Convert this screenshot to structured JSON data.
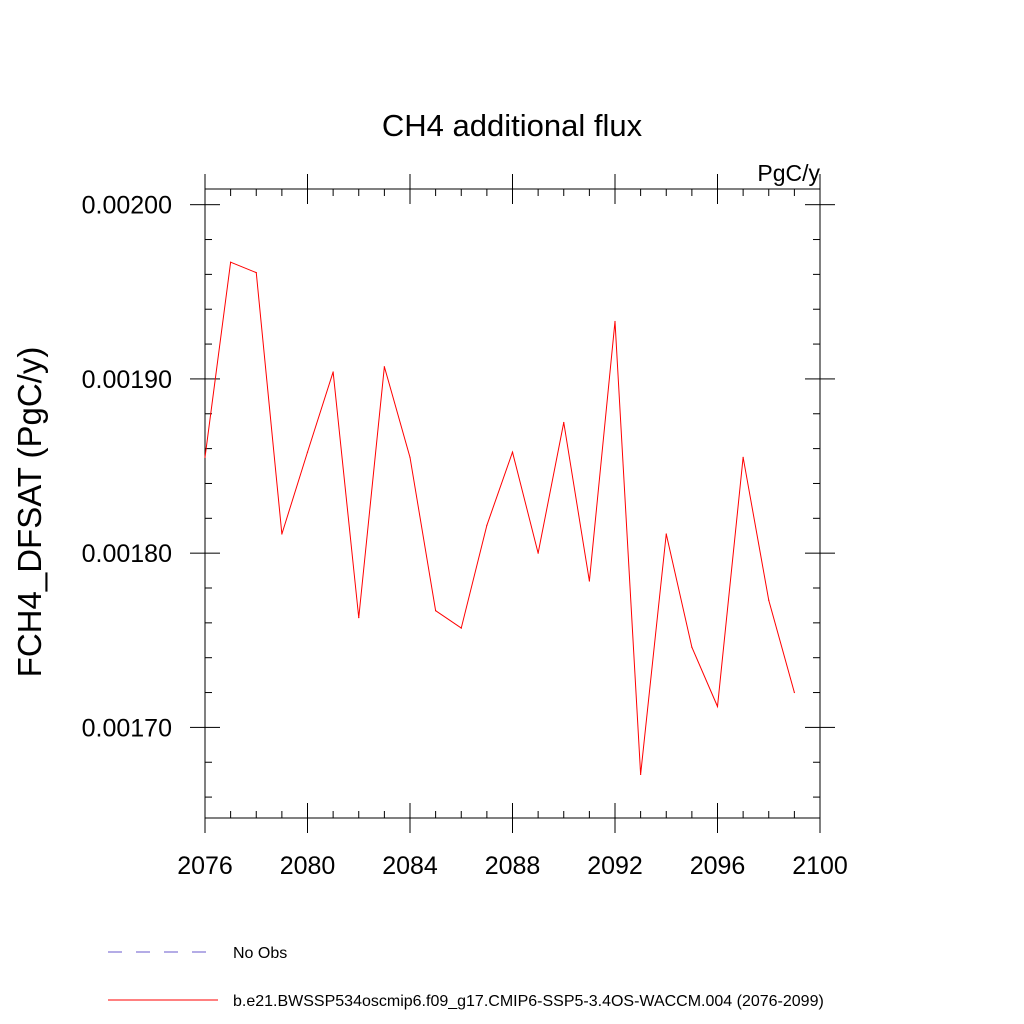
{
  "chart_data": {
    "type": "line",
    "title": "CH4 additional flux",
    "units_label": "PgC/y",
    "ylabel": "FCH4_DFSAT  (PgC/y)",
    "xlabel": "",
    "xlim": [
      2076,
      2100
    ],
    "ylim": [
      0.001648,
      0.002009
    ],
    "x_ticks": [
      2076,
      2080,
      2084,
      2088,
      2092,
      2096,
      2100
    ],
    "x_tick_labels": [
      "2076",
      "2080",
      "2084",
      "2088",
      "2092",
      "2096",
      "2100"
    ],
    "y_ticks": [
      0.0017,
      0.0018,
      0.0019,
      0.002
    ],
    "y_tick_labels": [
      "0.00170",
      "0.00180",
      "0.00190",
      "0.00200"
    ],
    "grid": false,
    "series": [
      {
        "name": "b.e21.BWSSP534oscmip6.f09_g17.CMIP6-SSP5-3.4OS-WACCM.004 (2076-2099)",
        "color": "#ff0000",
        "x": [
          2076,
          2077,
          2078,
          2079,
          2080,
          2081,
          2082,
          2083,
          2084,
          2085,
          2086,
          2087,
          2088,
          2089,
          2090,
          2091,
          2092,
          2093,
          2094,
          2095,
          2096,
          2097,
          2098,
          2099
        ],
        "y": [
          0.001855,
          0.001967,
          0.001961,
          0.001811,
          0.001858,
          0.001904,
          0.001763,
          0.001907,
          0.001855,
          0.001767,
          0.001757,
          0.001816,
          0.001858,
          0.0018,
          0.001875,
          0.001784,
          0.001933,
          0.001673,
          0.001811,
          0.001746,
          0.001712,
          0.001855,
          0.001773,
          0.00172
        ]
      }
    ],
    "legend": {
      "placement": "bottom",
      "entries": [
        {
          "label": "No Obs",
          "color": "#6a5acd",
          "style": "dashed"
        },
        {
          "label": "b.e21.BWSSP534oscmip6.f09_g17.CMIP6-SSP5-3.4OS-WACCM.004 (2076-2099)",
          "color": "#ff0000",
          "style": "solid"
        }
      ]
    }
  }
}
